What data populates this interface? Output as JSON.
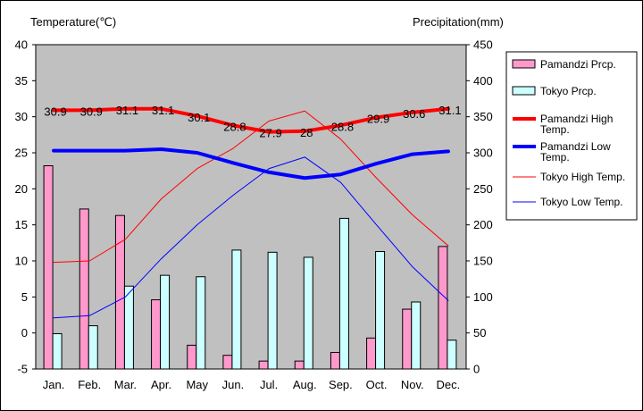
{
  "chart_data": {
    "type": "bar+line",
    "left_axis_title": "Temperature(℃)",
    "right_axis_title": "Precipitation(mm)",
    "categories": [
      "Jan.",
      "Feb.",
      "Mar.",
      "Apr.",
      "May",
      "Jun.",
      "Jul.",
      "Aug.",
      "Sep.",
      "Oct.",
      "Nov.",
      "Dec."
    ],
    "left_ylim": [
      -5,
      40
    ],
    "left_ticks": [
      "40",
      "35",
      "30",
      "25",
      "20",
      "15",
      "10",
      "5",
      "0",
      "-5"
    ],
    "right_ylim": [
      0,
      450
    ],
    "right_ticks": [
      "450",
      "400",
      "350",
      "300",
      "250",
      "200",
      "150",
      "100",
      "50",
      "0"
    ],
    "bar_series": [
      {
        "name": "Pamandzi Prcp.",
        "color": "#ff99cc",
        "values": [
          282,
          222,
          213,
          96,
          33,
          19,
          11,
          11,
          23,
          43,
          83,
          170
        ]
      },
      {
        "name": "Tokyo Prcp.",
        "color": "#ccffff",
        "values": [
          49,
          60,
          115,
          130,
          128,
          165,
          162,
          155,
          209,
          163,
          93,
          40
        ]
      }
    ],
    "line_series": [
      {
        "name": "Pamandzi High Temp.",
        "legend_lines": [
          "Pamandzi High",
          "Temp."
        ],
        "color": "#ff0000",
        "width": 4,
        "values": [
          30.9,
          30.9,
          31.1,
          31.1,
          30.1,
          28.8,
          27.9,
          28.0,
          28.8,
          29.9,
          30.6,
          31.1
        ],
        "labels": [
          "30.9",
          "30.9",
          "31.1",
          "31.1",
          "30.1",
          "28.8",
          "27.9",
          "28",
          "28.8",
          "29.9",
          "30.6",
          "31.1"
        ]
      },
      {
        "name": "Pamandzi Low Temp.",
        "legend_lines": [
          "Pamandzi Low",
          "Temp."
        ],
        "color": "#0000ff",
        "width": 4,
        "values": [
          25.3,
          25.3,
          25.3,
          25.5,
          25.0,
          23.6,
          22.3,
          21.5,
          22.0,
          23.5,
          24.8,
          25.2
        ]
      },
      {
        "name": "Tokyo High Temp.",
        "legend_lines": [
          "Tokyo High Temp."
        ],
        "color": "#ff0000",
        "width": 1,
        "values": [
          9.8,
          10.0,
          13.0,
          18.6,
          22.8,
          25.6,
          29.4,
          30.8,
          26.9,
          21.5,
          16.4,
          12.1
        ]
      },
      {
        "name": "Tokyo Low Temp.",
        "legend_lines": [
          "Tokyo Low Temp."
        ],
        "color": "#0000ff",
        "width": 1,
        "values": [
          2.1,
          2.4,
          5.0,
          10.3,
          15.0,
          19.1,
          22.8,
          24.4,
          20.9,
          15.0,
          9.2,
          4.5
        ]
      }
    ],
    "grid": false,
    "legend_position": "right"
  }
}
